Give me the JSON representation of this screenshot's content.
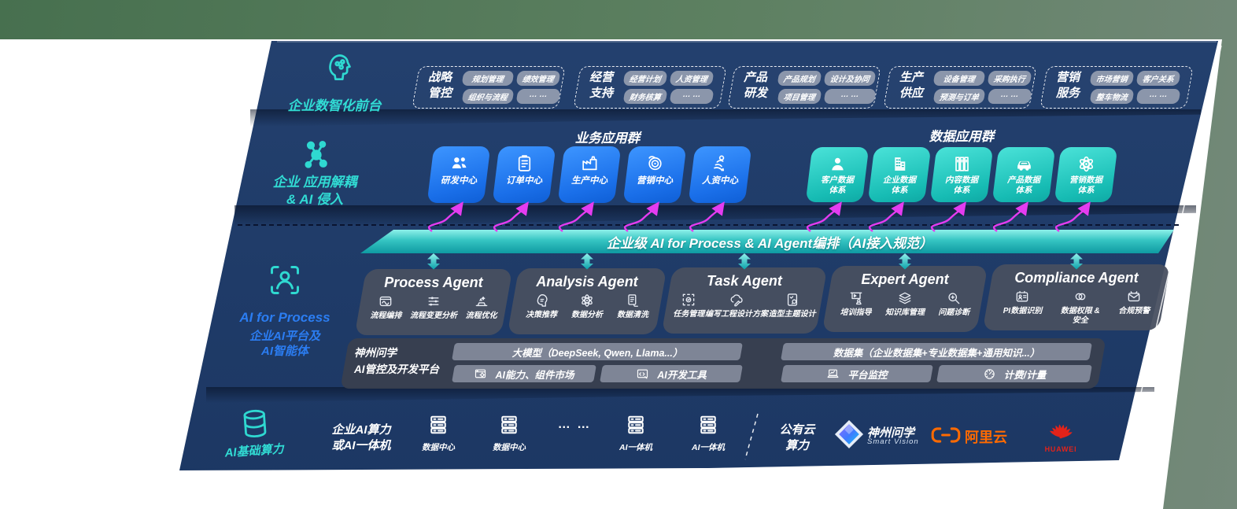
{
  "front_office": {
    "label": "企业数智化前台",
    "icon": "ai-head-icon",
    "groups": [
      {
        "title_lines": [
          "战略",
          "管控"
        ],
        "chips": [
          "规划管理",
          "绩效管理",
          "组织与流程",
          "… …"
        ]
      },
      {
        "title_lines": [
          "经营",
          "支持"
        ],
        "chips": [
          "经营计划",
          "人资管理",
          "财务核算",
          "… …"
        ]
      },
      {
        "title_lines": [
          "产品",
          "研发"
        ],
        "chips": [
          "产品规划",
          "设计及协同",
          "项目管理",
          "… …"
        ]
      },
      {
        "title_lines": [
          "生产",
          "供应"
        ],
        "chips": [
          "设备管理",
          "采购执行",
          "预测与订单",
          "… …"
        ]
      },
      {
        "title_lines": [
          "营销",
          "服务"
        ],
        "chips": [
          "市场营销",
          "客户关系",
          "整车物流",
          "… …"
        ]
      }
    ]
  },
  "app_layer": {
    "label_lines": [
      "企业 应用解耦",
      "& AI 侵入"
    ],
    "icon": "molecule-icon",
    "business_group": {
      "title": "业务应用群",
      "boxes": [
        {
          "label": "研发中心",
          "icon": "team-icon"
        },
        {
          "label": "订单中心",
          "icon": "clipboard-icon"
        },
        {
          "label": "生产中心",
          "icon": "factory-icon"
        },
        {
          "label": "营销中心",
          "icon": "target-icon"
        },
        {
          "label": "人资中心",
          "icon": "people-flow-icon"
        }
      ]
    },
    "data_group": {
      "title": "数据应用群",
      "boxes": [
        {
          "label_lines": [
            "客户数据",
            "体系"
          ],
          "icon": "user-icon"
        },
        {
          "label_lines": [
            "企业数据",
            "体系"
          ],
          "icon": "building-icon"
        },
        {
          "label_lines": [
            "内容数据",
            "体系"
          ],
          "icon": "books-icon"
        },
        {
          "label_lines": [
            "产品数据",
            "体系"
          ],
          "icon": "car-icon"
        },
        {
          "label_lines": [
            "营销数据",
            "体系"
          ],
          "icon": "atom-icon"
        }
      ]
    }
  },
  "orchestration_bar": {
    "label": "企业级 AI for Process & AI Agent编排（AI接入规范）"
  },
  "agent_layer": {
    "side_label": {
      "title": "AI for Process",
      "lines": [
        "企业AI平台及",
        "AI智能体"
      ],
      "icon": "person-scan-icon"
    },
    "agents": [
      {
        "title": "Process Agent",
        "items": [
          {
            "label": "流程编排",
            "icon": "workflow-icon"
          },
          {
            "label": "流程变更分析",
            "icon": "sliders-icon"
          },
          {
            "label": "流程优化",
            "icon": "optimize-icon"
          }
        ]
      },
      {
        "title": "Analysis Agent",
        "items": [
          {
            "label": "决策推荐",
            "icon": "decision-head-icon"
          },
          {
            "label": "数据分析",
            "icon": "atom-icon"
          },
          {
            "label": "数据清洗",
            "icon": "doc-clean-icon"
          }
        ]
      },
      {
        "title": "Task Agent",
        "items": [
          {
            "label": "任务管理",
            "icon": "task-grid-icon"
          },
          {
            "label": "编写工程设计方案",
            "icon": "cloud-edit-icon"
          },
          {
            "label": "造型主题设计",
            "icon": "design-doc-icon"
          }
        ]
      },
      {
        "title": "Expert Agent",
        "items": [
          {
            "label": "培训指导",
            "icon": "training-icon"
          },
          {
            "label": "知识库管理",
            "icon": "layers-icon"
          },
          {
            "label": "问题诊断",
            "icon": "diagnose-icon"
          }
        ]
      },
      {
        "title": "Compliance Agent",
        "items": [
          {
            "label": "PI数据识别",
            "icon": "id-card-icon"
          },
          {
            "label": "数据权限 &\n安全",
            "icon": "rings-icon"
          },
          {
            "label": "合规预警",
            "icon": "mail-alert-icon"
          }
        ]
      }
    ]
  },
  "platform": {
    "label_lines": [
      "神州问学",
      "AI管控及开发平台"
    ],
    "model_bar": "大模型（DeepSeek, Qwen, Llama...）",
    "dataset_bar": "数据集（企业数据集+专业数据集+通用知识...）",
    "tool_bars": [
      {
        "label": "AI能力、组件市场",
        "icon": "components-icon"
      },
      {
        "label": "AI开发工具",
        "icon": "devtools-icon"
      },
      {
        "label": "平台监控",
        "icon": "monitor-icon"
      },
      {
        "label": "计费/计量",
        "icon": "gauge-icon"
      }
    ]
  },
  "infra": {
    "label": "AI基础算力",
    "icon": "database-icon",
    "compute_label_lines": [
      "企业AI算力",
      "或AI一体机"
    ],
    "nodes": [
      {
        "label": "数据中心",
        "icon": "server-icon"
      },
      {
        "label": "数据中心",
        "icon": "server-icon"
      },
      {
        "label": "… …",
        "icon": "ellipsis"
      },
      {
        "label": "AI一体机",
        "icon": "server-icon"
      },
      {
        "label": "AI一体机",
        "icon": "server-icon"
      }
    ],
    "public_cloud_lines": [
      "公有云",
      "算力"
    ],
    "vendors": [
      {
        "name": "神州问学",
        "sub": "Smart Vision",
        "icon": "smartvision-diamond-logo"
      },
      {
        "name": "阿里云",
        "icon": "aliyun-logo"
      },
      {
        "name": "HUAWEI",
        "icon": "huawei-logo"
      }
    ]
  },
  "colors": {
    "teal": "#2ed9d2",
    "blue": "#2b7df2",
    "magenta": "#e43cf0",
    "panel_navy": "#1f3b68",
    "blue_box": "#1a6fe9",
    "teal_box": "#17bcb4",
    "aliyun_orange": "#ff6a00",
    "huawei_red": "#e2231a",
    "backdrop_green": "#5d8061"
  }
}
